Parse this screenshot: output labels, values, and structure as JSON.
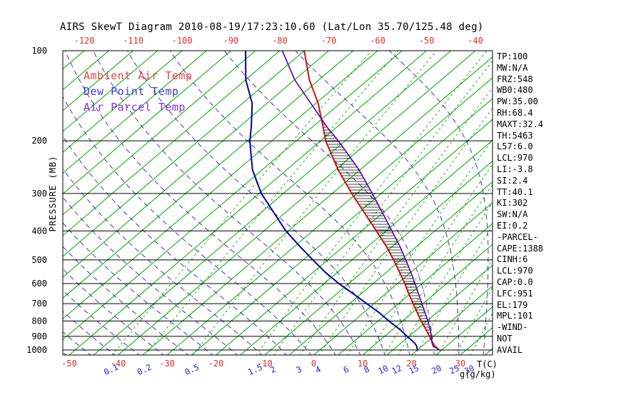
{
  "title": "AIRS SkewT Diagram 2010-08-19/17:23:10.60 (Lat/Lon 35.70/125.48 deg)",
  "legend": {
    "ambient": "Ambient Air Temp",
    "dewpoint": "Dew Point Temp",
    "parcel": "Air Parcel Temp"
  },
  "axes": {
    "pressure_label": "PRESSURE (MB)",
    "pressure_ticks": [
      100,
      200,
      300,
      400,
      500,
      600,
      700,
      800,
      900,
      1000
    ],
    "top_temp_ticks": [
      -120,
      -110,
      -100,
      -90,
      -80,
      -70,
      -60,
      -50,
      -40
    ],
    "bottom_temp_ticks": [
      -50,
      -40,
      -30,
      -20,
      -10,
      0,
      10,
      20,
      30
    ],
    "temp_unit": "T(C)",
    "mixr_ticks": [
      0.1,
      0.2,
      0.5,
      1.5,
      2,
      3,
      4,
      6,
      8,
      10,
      12,
      15,
      20,
      25,
      30
    ],
    "mixr_unit": "g(g/kg)"
  },
  "stats": {
    "items": [
      "TP:100",
      "MW:N/A",
      "FRZ:548",
      "WB0:480",
      "PW:35.00",
      "RH:68.4",
      "MAXT:32.4",
      "TH:5463",
      "L57:6.0",
      "LCL:970",
      "LI:-3.8",
      "SI:2.4",
      "TT:40.1",
      "KI:302",
      "SW:N/A",
      "EI:0.2",
      "-PARCEL-",
      "CAPE:1388",
      "CINH:6",
      "LCL:970",
      "CAP:0.0",
      "LFC:951",
      "EL:179",
      "MPL:101",
      "-WIND-",
      "NOT",
      "AVAIL"
    ]
  },
  "colors": {
    "isotherm": "#00a400",
    "mixing_ratio": "#00a400",
    "moist_adiabat": "#4b35a0",
    "pressure_line": "#000000",
    "ambient": "#c41414",
    "dewpoint": "#000096",
    "parcel": "#5a00a0",
    "temp_tick": "#d83030",
    "mixr_tick": "#2424c8",
    "legend_ambient": "#e04848",
    "legend_dewpoint": "#3c3cd8",
    "legend_parcel": "#8a2be2",
    "hatch": "#000000",
    "text": "#000000"
  },
  "chart_data": {
    "type": "line",
    "title": "AIRS SkewT Diagram 2010-08-19/17:23:10.60 (Lat/Lon 35.70/125.48 deg)",
    "xlabel": "Temperature (C)",
    "ylabel": "Pressure (MB)",
    "y_scale": "log",
    "ylim": [
      100,
      1050
    ],
    "skew": "isotherms slanted up-right (skew-T)",
    "pressures": [
      1000,
      970,
      950,
      925,
      900,
      850,
      800,
      750,
      700,
      650,
      600,
      550,
      500,
      450,
      400,
      350,
      300,
      250,
      200,
      180,
      150,
      125,
      100
    ],
    "series": [
      {
        "name": "Ambient Air Temp",
        "unit": "C",
        "color": "#c41414",
        "values": [
          24.5,
          22.6,
          21.6,
          20.4,
          19.2,
          16.6,
          13.8,
          11.0,
          8.0,
          4.8,
          1.5,
          -2.3,
          -6.5,
          -11.3,
          -17.0,
          -23.5,
          -31.0,
          -39.5,
          -49.0,
          -52.8,
          -59.5,
          -67.0,
          -75.0
        ]
      },
      {
        "name": "Dew Point Temp",
        "unit": "C",
        "color": "#000096",
        "values": [
          20.0,
          18.9,
          17.9,
          16.3,
          14.6,
          11.2,
          7.2,
          3.2,
          -1.5,
          -6.5,
          -12.0,
          -17.5,
          -23.0,
          -29.0,
          -35.5,
          -42.0,
          -49.5,
          -57.0,
          -64.5,
          -67.5,
          -73.0,
          -80.0,
          -87.0
        ]
      },
      {
        "name": "Air Parcel Temp",
        "unit": "C",
        "color": "#5a00a0",
        "values": [
          24.5,
          22.3,
          21.4,
          20.5,
          19.6,
          17.5,
          15.2,
          12.6,
          9.8,
          6.8,
          3.6,
          0.0,
          -4.0,
          -8.5,
          -13.8,
          -19.8,
          -26.8,
          -35.2,
          -46.4,
          -52.0,
          -61.0,
          -70.0,
          -79.5
        ]
      }
    ],
    "cape_region": {
      "between": [
        "Air Parcel Temp",
        "Ambient Air Temp"
      ],
      "lfc_mb": 951,
      "el_mb": 179
    },
    "grid": {
      "isotherm_step": 5,
      "isotherm_min": -125,
      "isotherm_max": 40,
      "moist_adiabat_start_temps": [
        -60,
        -55,
        -50,
        -45,
        -40,
        -35,
        -30,
        -25,
        -20,
        -15,
        -10,
        -5,
        0,
        5,
        10,
        15,
        20,
        25,
        30,
        35,
        40
      ],
      "mixing_ratio_lines": [
        0.1,
        0.2,
        0.5,
        1.5,
        2,
        3,
        4,
        6,
        8,
        10,
        12,
        15,
        20,
        25,
        30
      ]
    }
  }
}
